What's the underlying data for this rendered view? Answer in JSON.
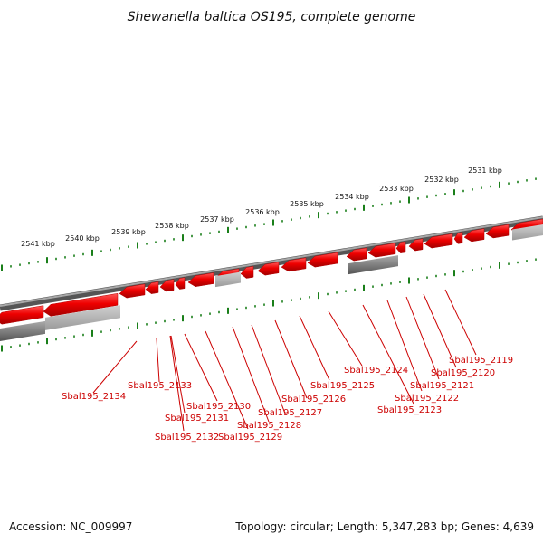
{
  "title": "Shewanella baltica OS195, complete genome",
  "scale_labels": [
    "2541 kbp",
    "2540 kbp",
    "2539 kbp",
    "2538 kbp",
    "2537 kbp",
    "2536 kbp",
    "2535 kbp",
    "2534 kbp",
    "2533 kbp",
    "2532 kbp",
    "2531 kbp"
  ],
  "genes": [
    "Sbal195_2134",
    "Sbal195_2133",
    "Sbal195_2131",
    "Sbal195_2132",
    "Sbal195_2130",
    "Sbal195_2129",
    "Sbal195_2128",
    "Sbal195_2127",
    "Sbal195_2126",
    "Sbal195_2125",
    "Sbal195_2124",
    "Sbal195_2123",
    "Sbal195_2122",
    "Sbal195_2121",
    "Sbal195_2120",
    "Sbal195_2119"
  ],
  "footer": {
    "accession": "Accession: NC_009997",
    "summary": "Topology: circular; Length: 5,347,283 bp; Genes: 4,639"
  },
  "colors": {
    "gene": "#e60000",
    "ticks": "#1a7f1a",
    "backbone": "#7a7a7a",
    "label": "#cc0000"
  }
}
